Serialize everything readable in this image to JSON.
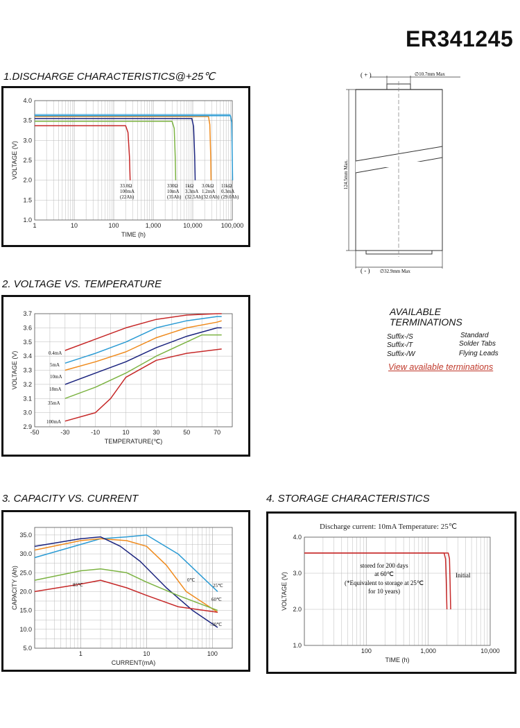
{
  "header": {
    "model": "ER341245"
  },
  "sections": {
    "s1": "1.DISCHARGE CHARACTERISTICS@+25℃",
    "s2": "2. VOLTAGE VS. TEMPERATURE",
    "s3": "3. CAPACITY VS. CURRENT",
    "s4": "4. STORAGE CHARACTERISTICS"
  },
  "dimensions": {
    "plus": "( + )",
    "minus": "( - )",
    "top_dia": "∅10.7mm Max",
    "bottom_dia": "∅32.9mm Max",
    "height": "124.5mm Max."
  },
  "terminations": {
    "title_line1": "AVAILABLE",
    "title_line2": "TERMINATIONS",
    "rows": [
      {
        "suffix": "Suffix-/S",
        "type": "Standard"
      },
      {
        "suffix": "Suffix-/T",
        "type": "Solder Tabs"
      },
      {
        "suffix": "Suffix-/W",
        "type": "Flying Leads"
      }
    ],
    "link": "View available terminations"
  },
  "chart_data": [
    {
      "type": "line",
      "title": "1.DISCHARGE CHARACTERISTICS@+25℃",
      "xlabel": "TIME (h)",
      "ylabel": "VOLTAGE (V)",
      "xscale": "log",
      "xlim": [
        1,
        100000
      ],
      "ylim": [
        1.0,
        4.0
      ],
      "xticks": [
        "1",
        "10",
        "100",
        "1,000",
        "10,000",
        "100,000"
      ],
      "yticks": [
        "1.0",
        "1.5",
        "2.0",
        "2.5",
        "3.0",
        "3.5",
        "4.0"
      ],
      "series": [
        {
          "color": "#c62828",
          "x": [
            1,
            200,
            230,
            250,
            260
          ],
          "y": [
            3.37,
            3.37,
            3.2,
            2.6,
            2.0
          ],
          "annotation": [
            "33.0Ω",
            "100mA",
            "(22Ah)"
          ]
        },
        {
          "color": "#7cb342",
          "x": [
            1,
            3000,
            3400,
            3600,
            3700
          ],
          "y": [
            3.48,
            3.48,
            3.3,
            2.6,
            2.0
          ],
          "annotation": [
            "330Ω",
            "10mA",
            "(35Ah)"
          ]
        },
        {
          "color": "#1a237e",
          "x": [
            1,
            9500,
            10500,
            11200,
            11500
          ],
          "y": [
            3.55,
            3.55,
            3.35,
            2.6,
            2.0
          ],
          "annotation": [
            "1kΩ",
            "3.3mA",
            "(32.5Ah)"
          ]
        },
        {
          "color": "#ef8a1c",
          "x": [
            1,
            25000,
            27000,
            28500,
            29000
          ],
          "y": [
            3.6,
            3.6,
            3.4,
            2.6,
            2.0
          ],
          "annotation": [
            "3.0kΩ",
            "1.2mA",
            "(32.0Ah)"
          ]
        },
        {
          "color": "#2b9bd4",
          "x": [
            1,
            90000,
            97000,
            100000,
            102000
          ],
          "y": [
            3.62,
            3.62,
            3.45,
            2.6,
            2.0
          ],
          "annotation": [
            "11kΩ",
            "0.3mA",
            "(29.0Ah)"
          ]
        }
      ],
      "extra_line": {
        "color": "#2b9bd4",
        "y": 3.65
      }
    },
    {
      "type": "line",
      "title": "2. VOLTAGE VS. TEMPERATURE",
      "xlabel": "TEMPERATURE(℃)",
      "ylabel": "VOLTAGE (V)",
      "xlim": [
        -50,
        80
      ],
      "ylim": [
        2.9,
        3.7
      ],
      "xticks": [
        "-50",
        "-30",
        "-10",
        "10",
        "30",
        "50",
        "70"
      ],
      "yticks": [
        "2.9",
        "3.0",
        "3.1",
        "3.2",
        "3.3",
        "3.4",
        "3.5",
        "3.6",
        "3.7"
      ],
      "series": [
        {
          "name": "0.4mA",
          "color": "#c62828",
          "x": [
            -30,
            -10,
            10,
            30,
            50,
            70,
            73
          ],
          "y": [
            3.44,
            3.52,
            3.6,
            3.66,
            3.69,
            3.7,
            3.7
          ]
        },
        {
          "name": "5mA",
          "color": "#2b9bd4",
          "x": [
            -30,
            -10,
            10,
            30,
            50,
            70,
            73
          ],
          "y": [
            3.35,
            3.42,
            3.5,
            3.6,
            3.65,
            3.68,
            3.68
          ]
        },
        {
          "name": "10mA",
          "color": "#ef8a1c",
          "x": [
            -30,
            -10,
            10,
            30,
            50,
            70,
            73
          ],
          "y": [
            3.3,
            3.36,
            3.43,
            3.53,
            3.6,
            3.64,
            3.65
          ]
        },
        {
          "name": "18mA",
          "color": "#1a237e",
          "x": [
            -30,
            -10,
            10,
            30,
            50,
            70,
            73
          ],
          "y": [
            3.2,
            3.28,
            3.36,
            3.46,
            3.54,
            3.6,
            3.6
          ]
        },
        {
          "name": "35mA",
          "color": "#7cb342",
          "x": [
            -30,
            -10,
            10,
            30,
            50,
            60,
            73
          ],
          "y": [
            3.1,
            3.18,
            3.28,
            3.4,
            3.5,
            3.55,
            3.55
          ]
        },
        {
          "name": "100mA",
          "color": "#c62828",
          "x": [
            -30,
            -10,
            0,
            10,
            30,
            50,
            73
          ],
          "y": [
            2.94,
            3.0,
            3.1,
            3.25,
            3.37,
            3.42,
            3.45
          ]
        }
      ]
    },
    {
      "type": "line",
      "title": "3. CAPACITY VS. CURRENT",
      "xlabel": "CURRENT(mA)",
      "ylabel": "CAPACITY (Ah)",
      "xscale": "log",
      "xlim": [
        0.2,
        200
      ],
      "ylim": [
        5.0,
        37.0
      ],
      "xticks": [
        "1",
        "10",
        "100"
      ],
      "yticks": [
        "5.0",
        "10.0",
        "15.0",
        "20.0",
        "25.0",
        "30.0",
        "35.0"
      ],
      "series": [
        {
          "name": "25℃",
          "color": "#2b9bd4",
          "x": [
            0.2,
            1,
            2,
            5,
            10,
            30,
            120
          ],
          "y": [
            29.0,
            32.5,
            34.0,
            34.5,
            35.0,
            30.0,
            20.0
          ]
        },
        {
          "name": "0℃",
          "color": "#ef8a1c",
          "x": [
            0.2,
            1,
            2,
            5,
            10,
            20,
            40,
            120
          ],
          "y": [
            31.0,
            33.5,
            34.0,
            33.5,
            32.0,
            27.0,
            20.0,
            14.5
          ]
        },
        {
          "name": "-30℃",
          "color": "#1a237e",
          "x": [
            0.2,
            1,
            2,
            4,
            8,
            20,
            50,
            120
          ],
          "y": [
            32.0,
            34.0,
            34.5,
            32.0,
            28.0,
            21.0,
            15.0,
            10.5
          ]
        },
        {
          "name": "60℃",
          "color": "#7cb342",
          "x": [
            0.2,
            1,
            2,
            5,
            10,
            30,
            120
          ],
          "y": [
            23.0,
            25.5,
            26.0,
            25.0,
            22.5,
            19.0,
            15.0
          ]
        },
        {
          "name": "85℃",
          "color": "#c62828",
          "x": [
            0.2,
            1,
            2,
            5,
            10,
            30,
            120
          ],
          "y": [
            20.0,
            22.0,
            23.0,
            21.0,
            19.0,
            16.0,
            14.5
          ]
        }
      ]
    },
    {
      "type": "line",
      "title": "4. STORAGE CHARACTERISTICS",
      "subtitle": "Discharge current: 10mA Temperature: 25℃",
      "xlabel": "TIME (h)",
      "ylabel": "VOLTAGE (V)",
      "xscale": "log",
      "xlim": [
        10,
        10000
      ],
      "ylim": [
        1.0,
        4.0
      ],
      "xticks": [
        "100",
        "1,000",
        "10,000"
      ],
      "yticks": [
        "1.0",
        "2.0",
        "3.0",
        "4.0"
      ],
      "series": [
        {
          "name": "stored for 200 days",
          "color": "#c62828",
          "x": [
            10,
            1800,
            1900,
            1950,
            2000
          ],
          "y": [
            3.56,
            3.56,
            3.4,
            2.8,
            2.0
          ]
        },
        {
          "name": "Initial",
          "color": "#c62828",
          "x": [
            10,
            2100,
            2200,
            2250,
            2300
          ],
          "y": [
            3.56,
            3.56,
            3.4,
            2.8,
            2.0
          ]
        }
      ],
      "annotations": [
        "stored for 200 days",
        "at 60℃",
        "(*Equivalent to storage at 25℃",
        "for 10 years)",
        "Initial"
      ]
    }
  ]
}
